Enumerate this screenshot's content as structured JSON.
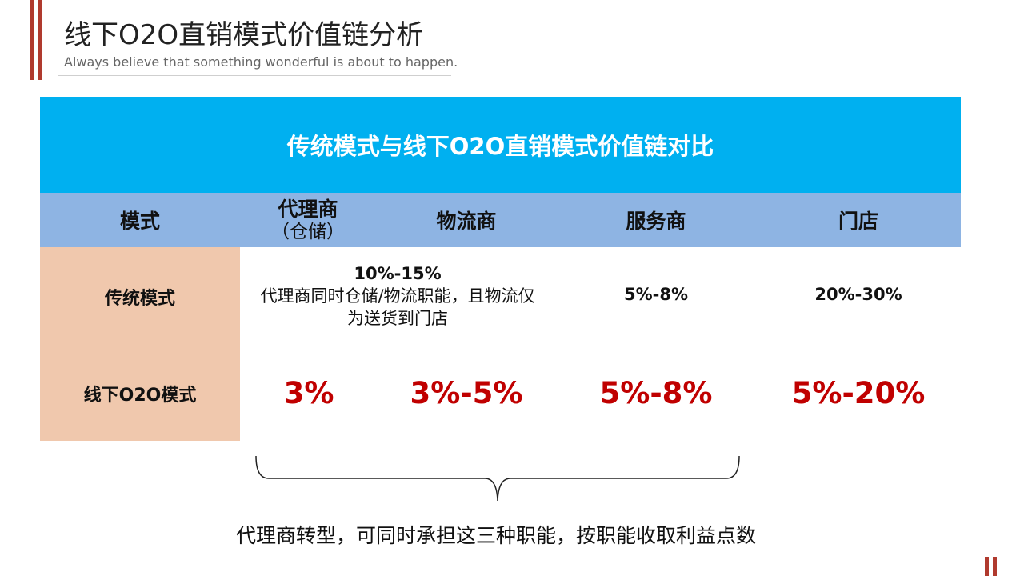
{
  "page": {
    "title": "线下O2O直销模式价值链分析",
    "subtitle": "Always believe that something wonderful is about to happen."
  },
  "table": {
    "title": "传统模式与线下O2O直销模式价值链对比",
    "headers": {
      "mode": "模式",
      "agent": "代理商",
      "agent_sub": "（仓储）",
      "logistics": "物流商",
      "service": "服务商",
      "store": "门店"
    },
    "rows": {
      "traditional": {
        "label": "传统模式",
        "agent_logistics_value": "10%-15%",
        "agent_logistics_note_line1": "代理商同时仓储/物流职能，且物流仅",
        "agent_logistics_note_line2": "为送货到门店",
        "service": "5%-8%",
        "store": "20%-30%"
      },
      "o2o": {
        "label": "线下O2O模式",
        "agent": "3%",
        "logistics": "3%-5%",
        "service": "5%-8%",
        "store": "5%-20%"
      }
    }
  },
  "footer": {
    "note": "代理商转型，可同时承担这三种职能，按职能收取利益点数"
  },
  "colors": {
    "accent": "#b03a2e",
    "banner": "#00b0f0",
    "header": "#8eb4e3",
    "mode_column": "#f0c8ad",
    "highlight_text": "#c00000"
  }
}
